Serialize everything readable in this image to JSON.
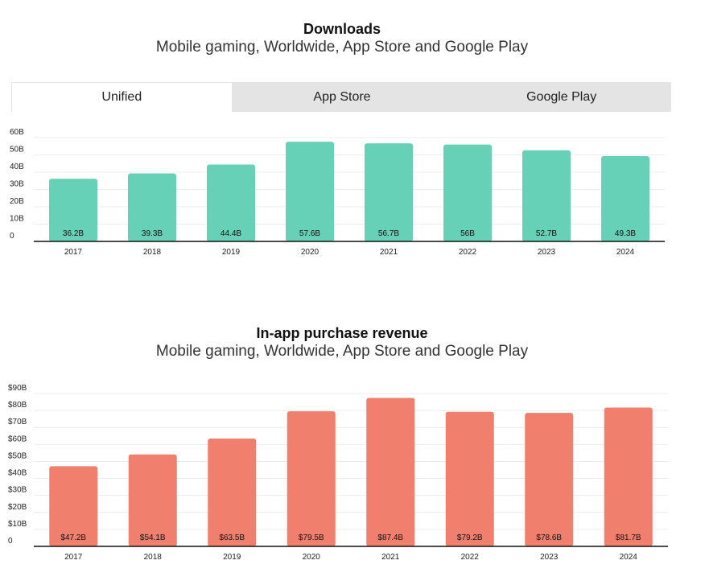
{
  "chart_data": [
    {
      "type": "bar",
      "title": "Downloads",
      "subtitle": "Mobile gaming, Worldwide, App Store and Google Play",
      "categories": [
        "2017",
        "2018",
        "2019",
        "2020",
        "2021",
        "2022",
        "2023",
        "2024"
      ],
      "values": [
        36.2,
        39.3,
        44.4,
        57.6,
        56.7,
        56,
        52.7,
        49.3
      ],
      "data_labels": [
        "36.2B",
        "39.3B",
        "44.4B",
        "57.6B",
        "56.7B",
        "56B",
        "52.7B",
        "49.3B"
      ],
      "y_ticks": [
        "0",
        "10B",
        "20B",
        "30B",
        "40B",
        "50B",
        "60B"
      ],
      "ylim": [
        0,
        60
      ],
      "color": "#66d1b6",
      "grid": true,
      "legend": "none"
    },
    {
      "type": "bar",
      "title": "In-app purchase revenue",
      "subtitle": "Mobile gaming, Worldwide, App Store and Google Play",
      "categories": [
        "2017",
        "2018",
        "2019",
        "2020",
        "2021",
        "2022",
        "2023",
        "2024"
      ],
      "values": [
        47.2,
        54.1,
        63.5,
        79.5,
        87.4,
        79.2,
        78.6,
        81.7
      ],
      "data_labels": [
        "$47.2B",
        "$54.1B",
        "$63.5B",
        "$79.5B",
        "$87.4B",
        "$79.2B",
        "$78.6B",
        "$81.7B"
      ],
      "y_ticks": [
        "0",
        "$10B",
        "$20B",
        "$30B",
        "$40B",
        "$50B",
        "$60B",
        "$70B",
        "$80B",
        "$90B"
      ],
      "ylim": [
        0,
        90
      ],
      "color": "#f07f6e",
      "grid": true,
      "legend": "none"
    }
  ],
  "tabs": [
    {
      "label": "Unified",
      "active": true
    },
    {
      "label": "App Store",
      "active": false
    },
    {
      "label": "Google Play",
      "active": false
    }
  ]
}
